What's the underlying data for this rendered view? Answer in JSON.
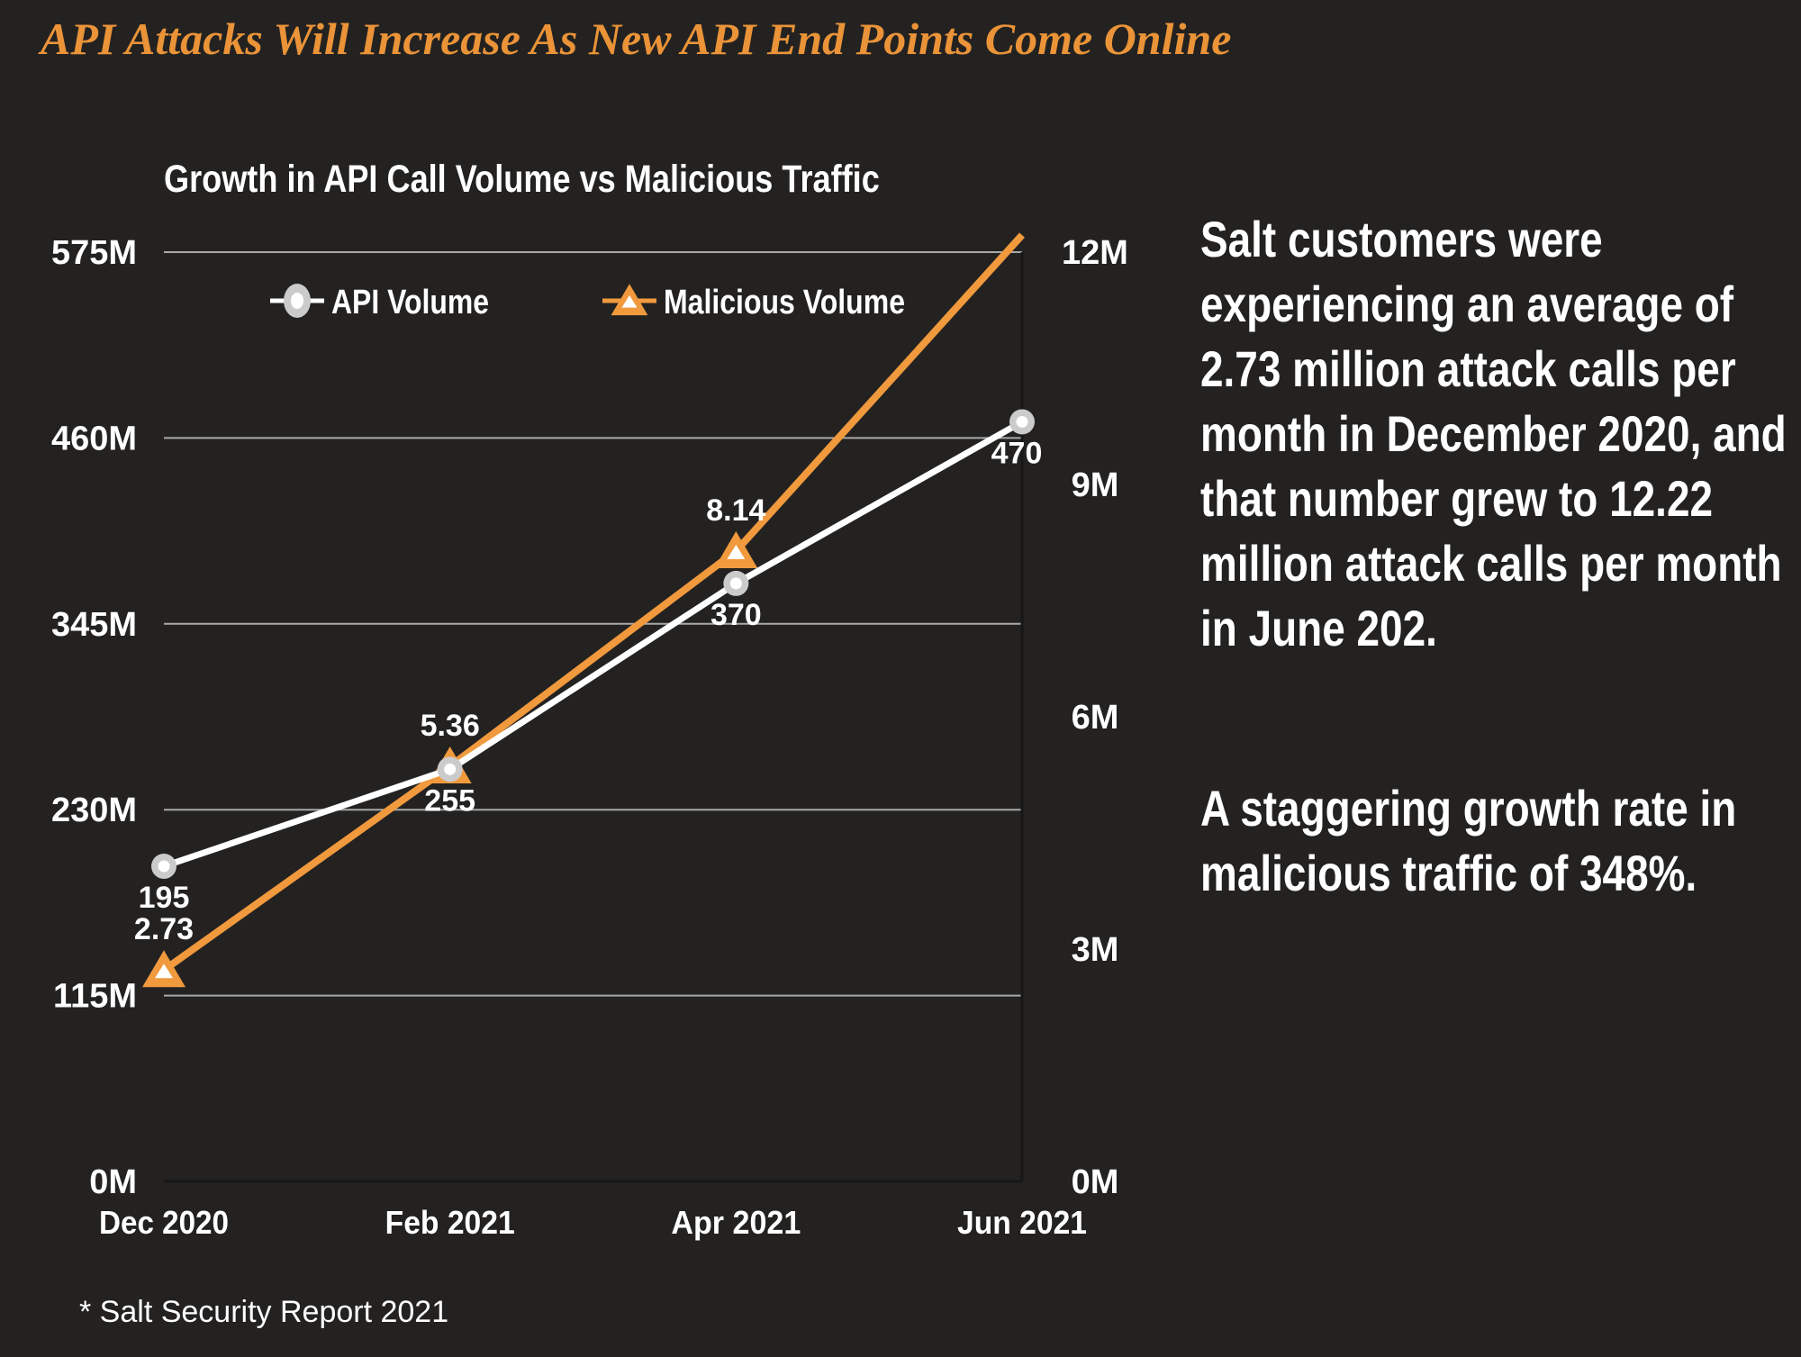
{
  "colors": {
    "background": "#232221",
    "title_orange": "#EA9338",
    "series_orange": "#F0993D",
    "series_white": "#FFFFFF",
    "marker_gray": "#CBCBCB",
    "gridline": "#A9A9A9",
    "axis_line": "#171717",
    "text_white": "#FFFFFF"
  },
  "header": {
    "title": "API Attacks Will Increase As New API End Points Come Online"
  },
  "chart_data": {
    "type": "line",
    "title": "Growth in API Call Volume vs Malicious Traffic",
    "categories": [
      "Dec 2020",
      "Feb 2021",
      "Apr 2021",
      "Jun 2021"
    ],
    "series": [
      {
        "name": "API Volume",
        "axis": "left",
        "unit": "M",
        "color": "#FFFFFF",
        "marker": "circle",
        "values": [
          195,
          255,
          370,
          470
        ],
        "point_labels": [
          "195",
          "255",
          "370",
          "470"
        ],
        "label_position": "below",
        "show_markers": [
          true,
          true,
          true,
          true
        ]
      },
      {
        "name": "Malicious Volume",
        "axis": "right",
        "unit": "M",
        "color": "#F0993D",
        "marker": "triangle",
        "values": [
          2.73,
          5.36,
          8.14,
          12.22
        ],
        "point_labels": [
          "2.73",
          "5.36",
          "8.14",
          ""
        ],
        "label_position": "above",
        "show_markers": [
          true,
          true,
          true,
          false
        ]
      }
    ],
    "left_axis": {
      "min": 0,
      "max": 575,
      "ticks": [
        "0M",
        "115M",
        "230M",
        "345M",
        "460M",
        "575M"
      ]
    },
    "right_axis": {
      "min": 0,
      "max": 12,
      "ticks": [
        "0M",
        "3M",
        "6M",
        "9M",
        "12M"
      ]
    },
    "grid": "horizontal",
    "legend_position": "top-inside"
  },
  "summary": {
    "paragraph1": "Salt customers were experiencing an average of 2.73 million attack calls per month in December 2020, and that number grew to 12.22 million attack calls per month in June 202.",
    "paragraph2": "A staggering growth rate in malicious traffic of 348%."
  },
  "footer": {
    "note": "* Salt Security Report 2021"
  }
}
